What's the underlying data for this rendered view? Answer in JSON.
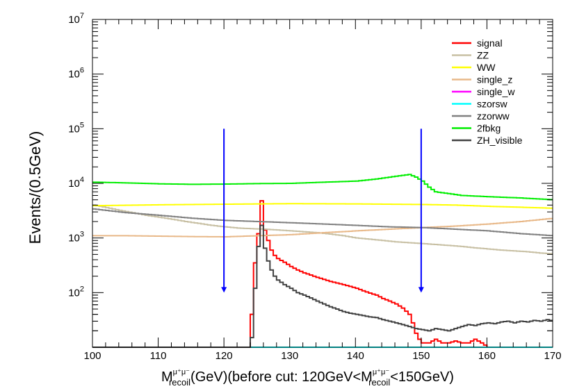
{
  "chart_data": {
    "type": "line",
    "xlim": [
      100,
      170
    ],
    "ylim": [
      10,
      10000000
    ],
    "yscale": "log",
    "grid": false,
    "legend_position": "top-right",
    "xticks": [
      "100",
      "110",
      "120",
      "130",
      "140",
      "150",
      "160",
      "170"
    ],
    "yticks": [
      {
        "base": "10",
        "exp": "2"
      },
      {
        "base": "10",
        "exp": "3"
      },
      {
        "base": "10",
        "exp": "4"
      },
      {
        "base": "10",
        "exp": "5"
      },
      {
        "base": "10",
        "exp": "6"
      },
      {
        "base": "10",
        "exp": "7"
      }
    ],
    "ylabel": "Events/(0.5GeV)",
    "xlabel": {
      "m": "M",
      "sup": "μ⁺μ⁻",
      "sub": "recoil",
      "mid": "(GeV)(before cut: 120GeV<M",
      "sup2": "μ⁺μ⁻",
      "sub2": "recoil",
      "end": "<150GeV)"
    },
    "cut_arrows": [
      {
        "x": 120,
        "y_from": 100000,
        "y_to": 100,
        "color": "#0000ff"
      },
      {
        "x": 150,
        "y_from": 100000,
        "y_to": 100,
        "color": "#0000ff"
      }
    ],
    "series": [
      {
        "name": "signal",
        "color": "#ff0000",
        "points": [
          [
            100,
            10
          ],
          [
            123.5,
            10
          ],
          [
            124,
            40
          ],
          [
            124.5,
            350
          ],
          [
            125,
            1200
          ],
          [
            125.5,
            4800
          ],
          [
            126,
            1400
          ],
          [
            126.5,
            900
          ],
          [
            127,
            600
          ],
          [
            127.5,
            480
          ],
          [
            128,
            420
          ],
          [
            129,
            360
          ],
          [
            130,
            300
          ],
          [
            131,
            260
          ],
          [
            132,
            230
          ],
          [
            133,
            210
          ],
          [
            134,
            190
          ],
          [
            135,
            175
          ],
          [
            136,
            160
          ],
          [
            137,
            150
          ],
          [
            138,
            140
          ],
          [
            139,
            130
          ],
          [
            140,
            120
          ],
          [
            141,
            108
          ],
          [
            142,
            98
          ],
          [
            143,
            90
          ],
          [
            144,
            78
          ],
          [
            145,
            70
          ],
          [
            146,
            62
          ],
          [
            147,
            52
          ],
          [
            148,
            40
          ],
          [
            148.5,
            28
          ],
          [
            149,
            18
          ],
          [
            149.5,
            14
          ],
          [
            150,
            12
          ],
          [
            151,
            12
          ],
          [
            152,
            14
          ],
          [
            153,
            12
          ],
          [
            154,
            12
          ],
          [
            155,
            13
          ],
          [
            156,
            12
          ],
          [
            157,
            12
          ],
          [
            158,
            14
          ],
          [
            159,
            12
          ],
          [
            160,
            10
          ],
          [
            170,
            10
          ]
        ]
      },
      {
        "name": "ZZ",
        "color": "#c8c0a4",
        "points": [
          [
            100,
            4000
          ],
          [
            102,
            3600
          ],
          [
            104,
            3200
          ],
          [
            106,
            2900
          ],
          [
            108,
            2600
          ],
          [
            110,
            2400
          ],
          [
            112,
            2200
          ],
          [
            114,
            2000
          ],
          [
            116,
            1850
          ],
          [
            118,
            1700
          ],
          [
            120,
            1600
          ],
          [
            122,
            1520
          ],
          [
            124,
            1480
          ],
          [
            126,
            1450
          ],
          [
            128,
            1400
          ],
          [
            130,
            1350
          ],
          [
            132,
            1300
          ],
          [
            134,
            1250
          ],
          [
            136,
            1180
          ],
          [
            138,
            1100
          ],
          [
            140,
            1000
          ],
          [
            142,
            950
          ],
          [
            144,
            900
          ],
          [
            146,
            850
          ],
          [
            148,
            820
          ],
          [
            150,
            790
          ],
          [
            152,
            760
          ],
          [
            154,
            730
          ],
          [
            156,
            700
          ],
          [
            158,
            660
          ],
          [
            160,
            630
          ],
          [
            162,
            600
          ],
          [
            164,
            580
          ],
          [
            166,
            560
          ],
          [
            168,
            530
          ],
          [
            170,
            510
          ]
        ]
      },
      {
        "name": "WW",
        "color": "#ffff00",
        "points": [
          [
            100,
            3900
          ],
          [
            110,
            4050
          ],
          [
            120,
            4150
          ],
          [
            130,
            4250
          ],
          [
            140,
            4200
          ],
          [
            150,
            4100
          ],
          [
            155,
            4000
          ],
          [
            160,
            3800
          ],
          [
            165,
            3650
          ],
          [
            170,
            3500
          ]
        ]
      },
      {
        "name": "single_z",
        "color": "#e8b888",
        "points": [
          [
            100,
            1100
          ],
          [
            105,
            1100
          ],
          [
            110,
            1080
          ],
          [
            115,
            1060
          ],
          [
            120,
            1050
          ],
          [
            125,
            1100
          ],
          [
            130,
            1150
          ],
          [
            135,
            1250
          ],
          [
            140,
            1350
          ],
          [
            145,
            1450
          ],
          [
            150,
            1550
          ],
          [
            155,
            1650
          ],
          [
            160,
            1800
          ],
          [
            165,
            2000
          ],
          [
            170,
            2300
          ]
        ]
      },
      {
        "name": "single_w",
        "color": "#ff00ff",
        "points": [
          [
            100,
            10
          ],
          [
            170,
            10
          ]
        ]
      },
      {
        "name": "szorsw",
        "color": "#00ffff",
        "points": [
          [
            100,
            10
          ],
          [
            170,
            10
          ]
        ]
      },
      {
        "name": "zzorww",
        "color": "#808080",
        "points": [
          [
            100,
            3400
          ],
          [
            105,
            2900
          ],
          [
            110,
            2600
          ],
          [
            115,
            2300
          ],
          [
            120,
            2100
          ],
          [
            125,
            2000
          ],
          [
            130,
            1900
          ],
          [
            135,
            1800
          ],
          [
            140,
            1700
          ],
          [
            145,
            1600
          ],
          [
            150,
            1550
          ],
          [
            155,
            1450
          ],
          [
            160,
            1350
          ],
          [
            165,
            1200
          ],
          [
            170,
            1100
          ]
        ]
      },
      {
        "name": "2fbkg",
        "color": "#00ee00",
        "points": [
          [
            100,
            10500
          ],
          [
            105,
            10200
          ],
          [
            110,
            9800
          ],
          [
            115,
            9600
          ],
          [
            120,
            9700
          ],
          [
            125,
            9900
          ],
          [
            130,
            10000
          ],
          [
            135,
            10500
          ],
          [
            140,
            11000
          ],
          [
            143,
            12000
          ],
          [
            146,
            13500
          ],
          [
            148,
            14500
          ],
          [
            149,
            13000
          ],
          [
            150,
            11000
          ],
          [
            151,
            8500
          ],
          [
            152,
            7000
          ],
          [
            154,
            6500
          ],
          [
            156,
            6000
          ],
          [
            160,
            5700
          ],
          [
            165,
            5400
          ],
          [
            170,
            5000
          ]
        ]
      },
      {
        "name": "ZH_visible",
        "color": "#404040",
        "points": [
          [
            100,
            10
          ],
          [
            123.5,
            10
          ],
          [
            124,
            15
          ],
          [
            124.5,
            120
          ],
          [
            125,
            700
          ],
          [
            125.5,
            1700
          ],
          [
            126,
            650
          ],
          [
            126.5,
            380
          ],
          [
            127,
            260
          ],
          [
            127.5,
            200
          ],
          [
            128,
            170
          ],
          [
            129,
            140
          ],
          [
            130,
            120
          ],
          [
            131,
            100
          ],
          [
            132,
            90
          ],
          [
            133,
            80
          ],
          [
            134,
            70
          ],
          [
            135,
            62
          ],
          [
            136,
            55
          ],
          [
            137,
            50
          ],
          [
            138,
            45
          ],
          [
            139,
            42
          ],
          [
            140,
            40
          ],
          [
            141,
            38
          ],
          [
            142,
            36
          ],
          [
            143,
            35
          ],
          [
            144,
            32
          ],
          [
            145,
            30
          ],
          [
            146,
            28
          ],
          [
            147,
            26
          ],
          [
            148,
            24
          ],
          [
            149,
            22
          ],
          [
            150,
            21
          ],
          [
            151,
            20
          ],
          [
            152,
            22
          ],
          [
            153,
            21
          ],
          [
            154,
            20
          ],
          [
            155,
            22
          ],
          [
            156,
            24
          ],
          [
            157,
            26
          ],
          [
            158,
            25
          ],
          [
            159,
            27
          ],
          [
            160,
            28
          ],
          [
            161,
            27
          ],
          [
            162,
            29
          ],
          [
            163,
            30
          ],
          [
            164,
            28
          ],
          [
            165,
            30
          ],
          [
            166,
            29
          ],
          [
            167,
            31
          ],
          [
            168,
            30
          ],
          [
            169,
            32
          ],
          [
            170,
            30
          ]
        ]
      }
    ]
  }
}
